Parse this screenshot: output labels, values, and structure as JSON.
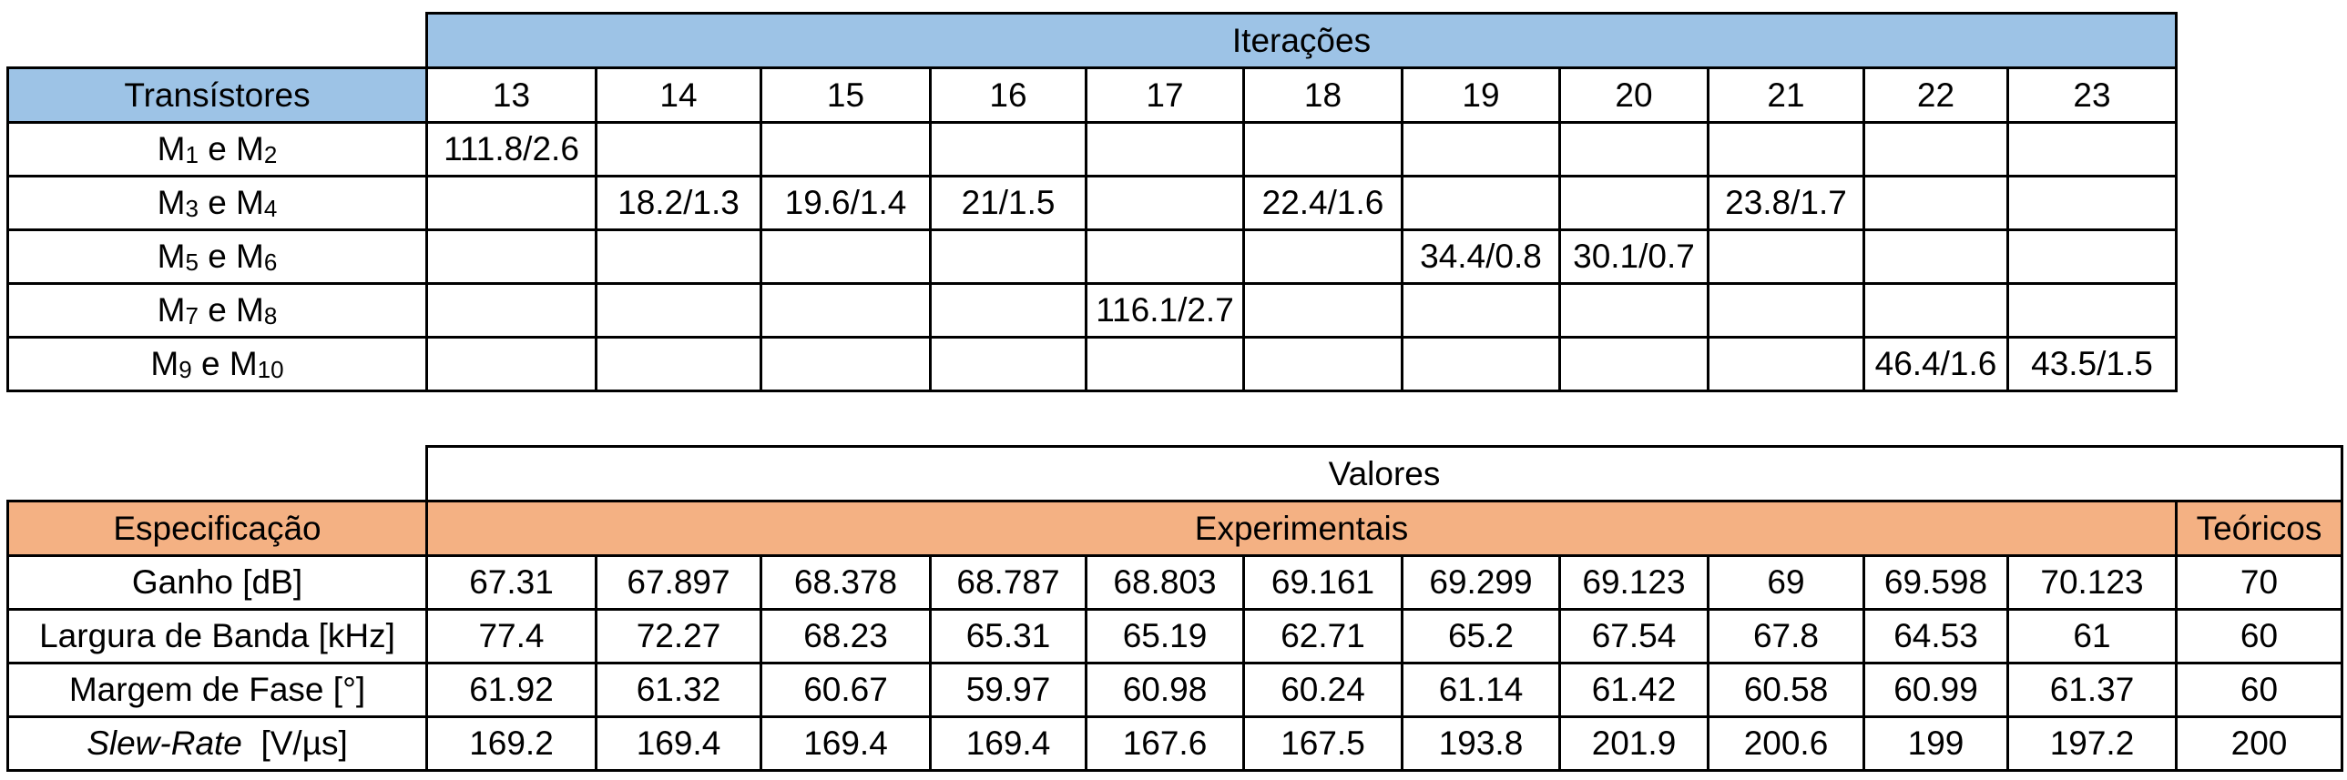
{
  "table1": {
    "group_header": "Iterações",
    "row_header": "Transístores",
    "columns": [
      "13",
      "14",
      "15",
      "16",
      "17",
      "18",
      "19",
      "20",
      "21",
      "22",
      "23"
    ],
    "rows": [
      {
        "label": {
          "a": "M",
          "a_sub": "1",
          "mid": " e M",
          "b_sub": "2"
        },
        "cells": [
          "111.8/2.6",
          "",
          "",
          "",
          "",
          "",
          "",
          "",
          "",
          "",
          ""
        ]
      },
      {
        "label": {
          "a": "M",
          "a_sub": "3",
          "mid": " e M",
          "b_sub": "4"
        },
        "cells": [
          "",
          "18.2/1.3",
          "19.6/1.4",
          "21/1.5",
          "",
          "22.4/1.6",
          "",
          "",
          "23.8/1.7",
          "",
          ""
        ]
      },
      {
        "label": {
          "a": "M",
          "a_sub": "5",
          "mid": " e M",
          "b_sub": "6"
        },
        "cells": [
          "",
          "",
          "",
          "",
          "",
          "",
          "34.4/0.8",
          "30.1/0.7",
          "",
          "",
          ""
        ]
      },
      {
        "label": {
          "a": "M",
          "a_sub": "7",
          "mid": " e M",
          "b_sub": "8"
        },
        "cells": [
          "",
          "",
          "",
          "",
          "116.1/2.7",
          "",
          "",
          "",
          "",
          "",
          ""
        ]
      },
      {
        "label": {
          "a": "M",
          "a_sub": "9",
          "mid": " e M",
          "b_sub": "10"
        },
        "cells": [
          "",
          "",
          "",
          "",
          "",
          "",
          "",
          "",
          "",
          "46.4/1.6",
          "43.5/1.5"
        ]
      }
    ]
  },
  "table2": {
    "group_header": "Valores",
    "row_header": "Especificação",
    "experimental_header": "Experimentais",
    "theoretical_header": "Teóricos",
    "rows": [
      {
        "label": "Ganho [dB]",
        "italic_part": "",
        "values": [
          "67.31",
          "67.897",
          "68.378",
          "68.787",
          "68.803",
          "69.161",
          "69.299",
          "69.123",
          "69",
          "69.598",
          "70.123"
        ],
        "theoretical": "70"
      },
      {
        "label": "Largura de Banda [kHz]",
        "italic_part": "",
        "values": [
          "77.4",
          "72.27",
          "68.23",
          "65.31",
          "65.19",
          "62.71",
          "65.2",
          "67.54",
          "67.8",
          "64.53",
          "61"
        ],
        "theoretical": "60"
      },
      {
        "label": "Margem de Fase [°]",
        "italic_part": "",
        "values": [
          "61.92",
          "61.32",
          "60.67",
          "59.97",
          "60.98",
          "60.24",
          "61.14",
          "61.42",
          "60.58",
          "60.99",
          "61.37"
        ],
        "theoretical": "60"
      },
      {
        "label": "  [V/µs]",
        "italic_part": "Slew-Rate",
        "values": [
          "169.2",
          "169.4",
          "169.4",
          "169.4",
          "167.6",
          "167.5",
          "193.8",
          "201.9",
          "200.6",
          "199",
          "197.2"
        ],
        "theoretical": "200"
      }
    ]
  },
  "colors": {
    "blue_header": "#9dc3e6",
    "orange_header": "#f4b183"
  }
}
